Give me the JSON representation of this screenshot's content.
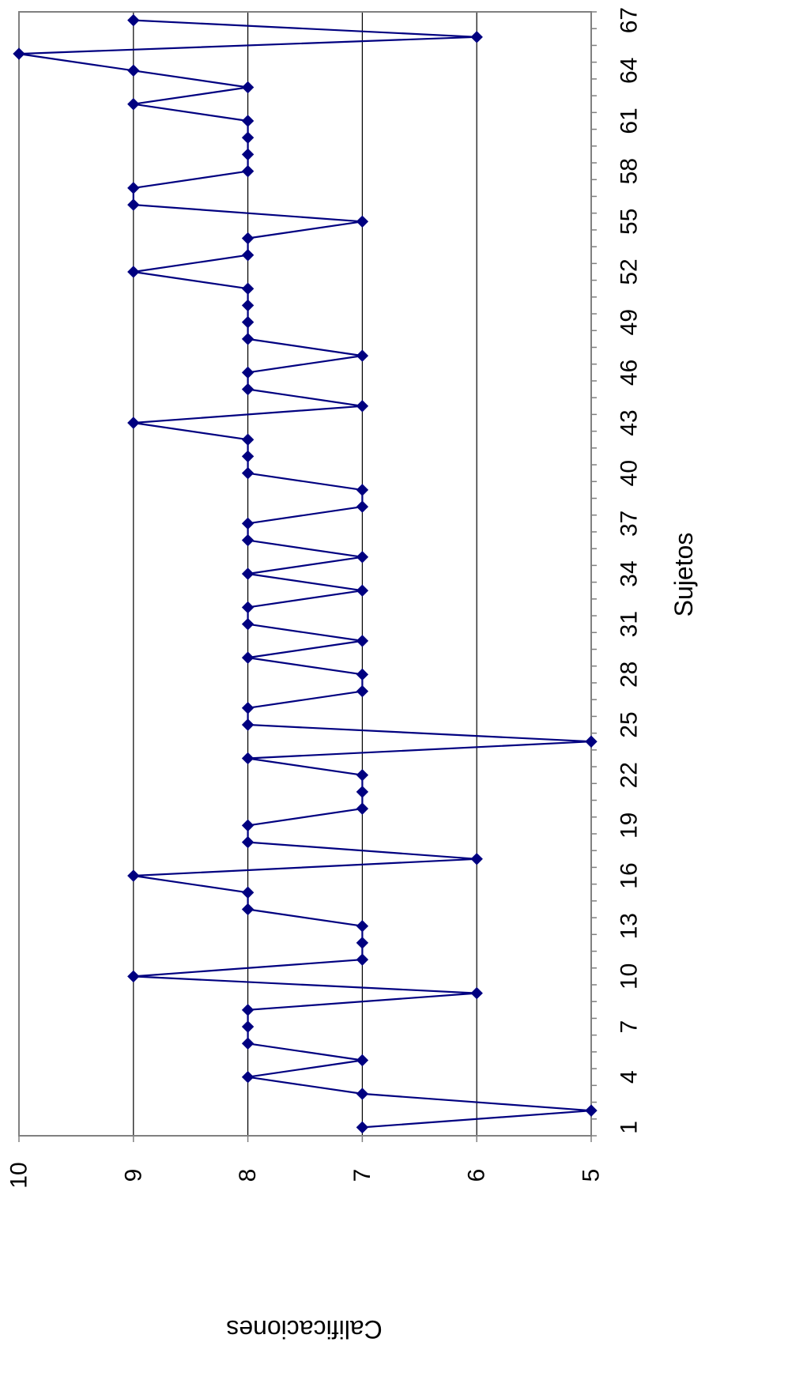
{
  "chart_data": {
    "type": "line",
    "orientation": "rotated-90-clockwise",
    "xlabel": "Sujetos",
    "ylabel": "Calificaciones",
    "x": [
      1,
      2,
      3,
      4,
      5,
      6,
      7,
      8,
      9,
      10,
      11,
      12,
      13,
      14,
      15,
      16,
      17,
      18,
      19,
      20,
      21,
      22,
      23,
      24,
      25,
      26,
      27,
      28,
      29,
      30,
      31,
      32,
      33,
      34,
      35,
      36,
      37,
      38,
      39,
      40,
      41,
      42,
      43,
      44,
      45,
      46,
      47,
      48,
      49,
      50,
      51,
      52,
      53,
      54,
      55,
      56,
      57,
      58,
      59,
      60,
      61,
      62,
      63,
      64,
      65,
      66,
      67
    ],
    "x_tick_labels": [
      "1",
      "4",
      "7",
      "10",
      "13",
      "16",
      "19",
      "22",
      "25",
      "28",
      "31",
      "34",
      "37",
      "40",
      "43",
      "46",
      "49",
      "52",
      "55",
      "58",
      "61",
      "64",
      "67"
    ],
    "y_tick_labels": [
      "5",
      "6",
      "7",
      "8",
      "9",
      "10"
    ],
    "ylim": [
      5,
      10
    ],
    "xlim": [
      1,
      67
    ],
    "grid": "horizontal major gridlines",
    "legend": "none",
    "series": [
      {
        "values": [
          7,
          5,
          7,
          8,
          7,
          8,
          8,
          8,
          6,
          9,
          7,
          7,
          7,
          8,
          8,
          9,
          6,
          8,
          8,
          7,
          7,
          7,
          8,
          5,
          8,
          8,
          7,
          7,
          8,
          7,
          8,
          8,
          7,
          8,
          7,
          8,
          8,
          7,
          7,
          8,
          8,
          8,
          9,
          7,
          8,
          8,
          7,
          8,
          8,
          8,
          8,
          9,
          8,
          8,
          7,
          9,
          9,
          8,
          8,
          8,
          8,
          9,
          8,
          9,
          10,
          6,
          9
        ],
        "color": "#000080",
        "marker": "diamond"
      }
    ]
  }
}
